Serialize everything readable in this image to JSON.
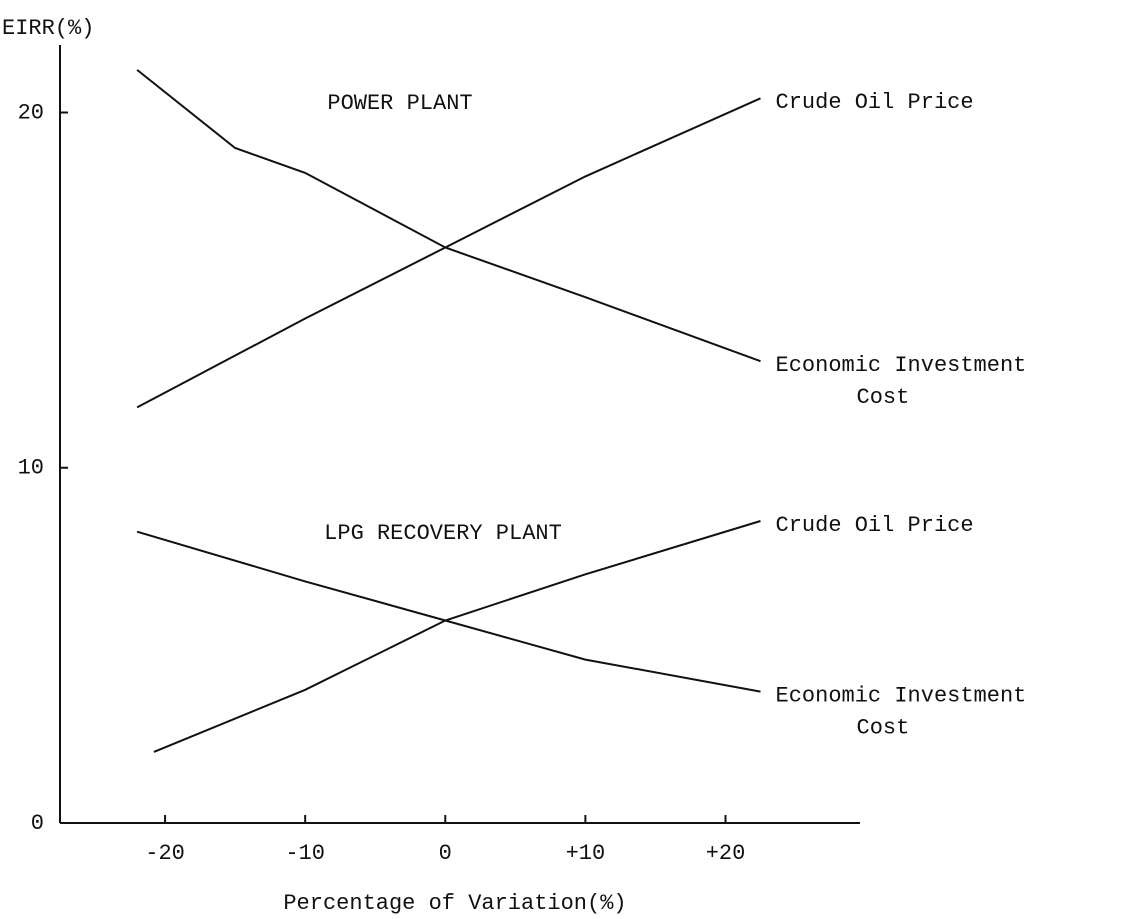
{
  "chart_data": {
    "type": "line",
    "ylabel": "EIRR(%)",
    "xlabel": "Percentage of Variation(%)",
    "xlim": [
      -27.5,
      29.6
    ],
    "ylim": [
      0,
      21.9
    ],
    "xticks": [
      -20,
      -10,
      0,
      {
        "value": 10,
        "label": "+10"
      },
      {
        "value": 20,
        "label": "+20"
      }
    ],
    "yticks": [
      0,
      10,
      20
    ],
    "groups": [
      {
        "title": "POWER PLANT",
        "series": [
          {
            "label": [
              "Crude Oil Price"
            ],
            "color": "#111111",
            "x": [
              -22,
              -10,
              0,
              10,
              22.5
            ],
            "values": [
              11.7,
              14.2,
              16.2,
              18.2,
              20.4
            ]
          },
          {
            "label": [
              "Economic Investment",
              "Cost"
            ],
            "color": "#111111",
            "x": [
              -22,
              -15,
              -10,
              0,
              10,
              22.5
            ],
            "values": [
              21.2,
              19.0,
              18.3,
              16.2,
              14.8,
              13.0
            ]
          }
        ]
      },
      {
        "title": "LPG RECOVERY PLANT",
        "series": [
          {
            "label": [
              "Crude Oil Price"
            ],
            "color": "#111111",
            "x": [
              -20.8,
              -10,
              0,
              10,
              22.5
            ],
            "values": [
              2.0,
              3.75,
              5.7,
              7.0,
              8.5
            ]
          },
          {
            "label": [
              "Economic Investment",
              "Cost"
            ],
            "color": "#111111",
            "x": [
              -22,
              -10,
              0,
              10,
              22.5
            ],
            "values": [
              8.2,
              6.8,
              5.7,
              4.6,
              3.7
            ]
          }
        ]
      }
    ]
  }
}
